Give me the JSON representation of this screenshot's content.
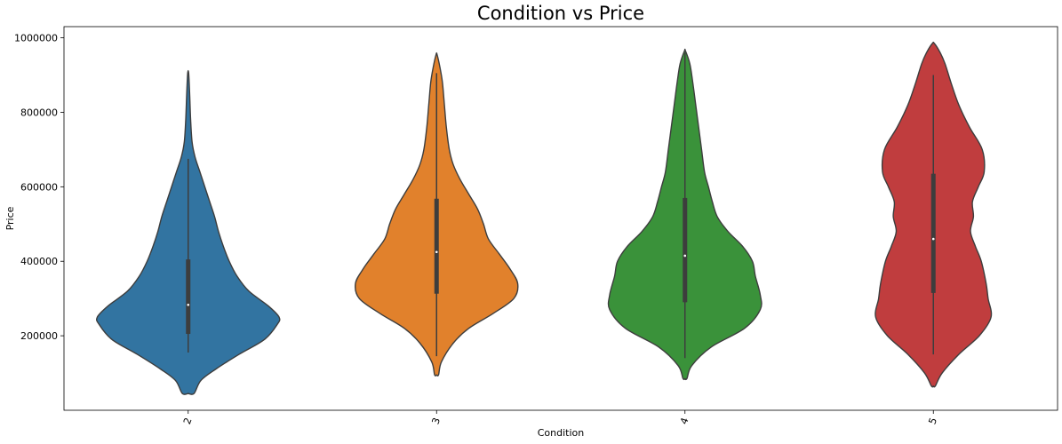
{
  "chart_data": {
    "type": "violin",
    "title": "Condition vs Price",
    "xlabel": "Condition",
    "ylabel": "Price",
    "categories": [
      "2",
      "3",
      "4",
      "5"
    ],
    "ylim": [
      0,
      1030000
    ],
    "yticks": [
      200000,
      400000,
      600000,
      800000,
      1000000
    ],
    "ytick_labels": [
      "200000",
      "400000",
      "600000",
      "800000",
      "1000000"
    ],
    "grid": false,
    "legend": "none",
    "colors": [
      "#3274a1",
      "#e1812c",
      "#3a923a",
      "#c03d3e"
    ],
    "outline_color": "#3d3d3d",
    "series": [
      {
        "category": "2",
        "min": 155000,
        "q1": 205000,
        "median": 283000,
        "q3": 405000,
        "max": 675000,
        "kde_range": [
          45000,
          905000
        ],
        "density": [
          [
            45000,
            0.06
          ],
          [
            80000,
            0.13
          ],
          [
            110000,
            0.28
          ],
          [
            150000,
            0.52
          ],
          [
            190000,
            0.78
          ],
          [
            230000,
            0.91
          ],
          [
            250000,
            0.93
          ],
          [
            280000,
            0.82
          ],
          [
            320000,
            0.62
          ],
          [
            360000,
            0.5
          ],
          [
            400000,
            0.42
          ],
          [
            440000,
            0.36
          ],
          [
            480000,
            0.31
          ],
          [
            520000,
            0.27
          ],
          [
            560000,
            0.22
          ],
          [
            600000,
            0.17
          ],
          [
            640000,
            0.12
          ],
          [
            680000,
            0.07
          ],
          [
            720000,
            0.04
          ],
          [
            780000,
            0.025
          ],
          [
            850000,
            0.015
          ],
          [
            905000,
            0.005
          ]
        ]
      },
      {
        "category": "3",
        "min": 145000,
        "q1": 313000,
        "median": 425000,
        "q3": 568000,
        "max": 905000,
        "kde_range": [
          95000,
          955000
        ],
        "density": [
          [
            95000,
            0.02
          ],
          [
            130000,
            0.05
          ],
          [
            180000,
            0.17
          ],
          [
            220000,
            0.33
          ],
          [
            260000,
            0.58
          ],
          [
            300000,
            0.79
          ],
          [
            340000,
            0.83
          ],
          [
            380000,
            0.75
          ],
          [
            420000,
            0.64
          ],
          [
            460000,
            0.53
          ],
          [
            500000,
            0.48
          ],
          [
            540000,
            0.42
          ],
          [
            580000,
            0.33
          ],
          [
            620000,
            0.24
          ],
          [
            660000,
            0.17
          ],
          [
            700000,
            0.13
          ],
          [
            760000,
            0.1
          ],
          [
            820000,
            0.08
          ],
          [
            880000,
            0.06
          ],
          [
            920000,
            0.035
          ],
          [
            955000,
            0.005
          ]
        ]
      },
      {
        "category": "4",
        "min": 140000,
        "q1": 290000,
        "median": 415000,
        "q3": 570000,
        "max": 960000,
        "kde_range": [
          85000,
          965000
        ],
        "density": [
          [
            85000,
            0.02
          ],
          [
            120000,
            0.07
          ],
          [
            170000,
            0.27
          ],
          [
            220000,
            0.61
          ],
          [
            270000,
            0.77
          ],
          [
            310000,
            0.77
          ],
          [
            360000,
            0.72
          ],
          [
            400000,
            0.69
          ],
          [
            440000,
            0.59
          ],
          [
            480000,
            0.44
          ],
          [
            520000,
            0.33
          ],
          [
            560000,
            0.28
          ],
          [
            600000,
            0.24
          ],
          [
            640000,
            0.2
          ],
          [
            700000,
            0.17
          ],
          [
            760000,
            0.14
          ],
          [
            820000,
            0.11
          ],
          [
            880000,
            0.08
          ],
          [
            930000,
            0.05
          ],
          [
            965000,
            0.005
          ]
        ]
      },
      {
        "category": "5",
        "min": 150000,
        "q1": 315000,
        "median": 460000,
        "q3": 635000,
        "max": 900000,
        "kde_range": [
          65000,
          985000
        ],
        "density": [
          [
            65000,
            0.02
          ],
          [
            100000,
            0.09
          ],
          [
            150000,
            0.26
          ],
          [
            200000,
            0.47
          ],
          [
            250000,
            0.59
          ],
          [
            300000,
            0.56
          ],
          [
            340000,
            0.54
          ],
          [
            400000,
            0.49
          ],
          [
            440000,
            0.43
          ],
          [
            480000,
            0.38
          ],
          [
            520000,
            0.41
          ],
          [
            560000,
            0.4
          ],
          [
            600000,
            0.46
          ],
          [
            640000,
            0.52
          ],
          [
            700000,
            0.5
          ],
          [
            760000,
            0.37
          ],
          [
            820000,
            0.26
          ],
          [
            880000,
            0.18
          ],
          [
            930000,
            0.12
          ],
          [
            960000,
            0.07
          ],
          [
            985000,
            0.01
          ]
        ]
      }
    ]
  }
}
